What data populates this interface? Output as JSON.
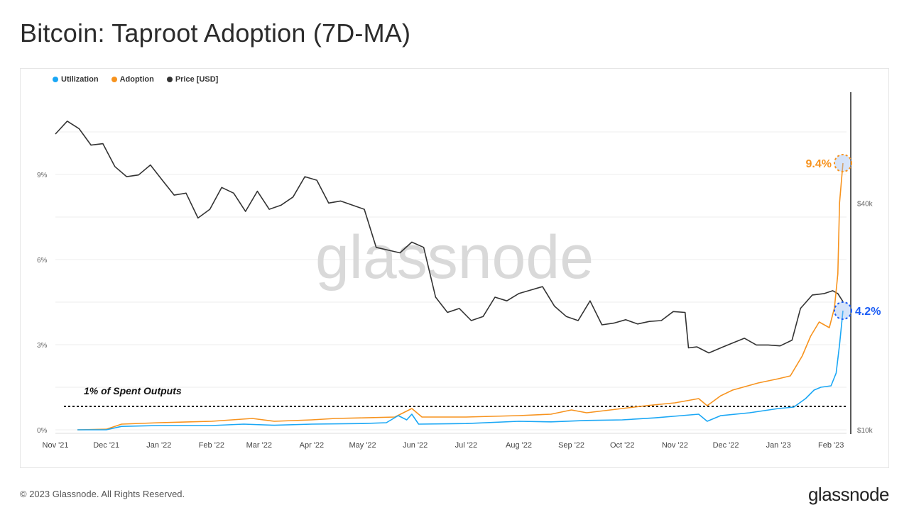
{
  "title": "Bitcoin: Taproot Adoption (7D-MA)",
  "footer": "© 2023 Glassnode. All Rights Reserved.",
  "brand": "glassnode",
  "watermark": "glassnode",
  "colors": {
    "utilization": "#1aa7f5",
    "adoption": "#f7931e",
    "price": "#333333",
    "annotation_blue": "#1a5cf5"
  },
  "chart_data": {
    "type": "line",
    "title": "Bitcoin: Taproot Adoption (7D-MA)",
    "legend": [
      "Utilization",
      "Adoption",
      "Price [USD]"
    ],
    "legend_position": "top-left",
    "x_range": [
      "2021-11-01",
      "2023-02-12"
    ],
    "x_ticks": [
      "Nov '21",
      "Dec '21",
      "Jan '22",
      "Feb '22",
      "Mar '22",
      "Apr '22",
      "May '22",
      "Jun '22",
      "Jul '22",
      "Aug '22",
      "Sep '22",
      "Oct '22",
      "Nov '22",
      "Dec '22",
      "Jan '23",
      "Feb '23"
    ],
    "y_left": {
      "unit": "%",
      "range": [
        0,
        10.5
      ],
      "ticks": [
        "0%",
        "3%",
        "6%",
        "9%"
      ],
      "tick_values": [
        0,
        3,
        6,
        9
      ]
    },
    "y_right": {
      "unit": "USD",
      "scale": "log",
      "ticks": [
        "$10k",
        "$40k"
      ],
      "tick_values": [
        10000,
        40000
      ]
    },
    "reference_line": {
      "value": 1,
      "label": "1% of Spent Outputs"
    },
    "annotations": [
      {
        "series": "Adoption",
        "label": "9.4%",
        "value": 9.4
      },
      {
        "series": "Utilization",
        "label": "4.2%",
        "value": 4.2
      }
    ],
    "series": [
      {
        "name": "Utilization",
        "axis": "left",
        "points": [
          [
            "2021-11-14",
            0
          ],
          [
            "2021-12-01",
            0
          ],
          [
            "2021-12-10",
            0.12
          ],
          [
            "2022-01-01",
            0.15
          ],
          [
            "2022-02-01",
            0.15
          ],
          [
            "2022-02-20",
            0.2
          ],
          [
            "2022-03-10",
            0.16
          ],
          [
            "2022-04-01",
            0.2
          ],
          [
            "2022-05-01",
            0.22
          ],
          [
            "2022-05-15",
            0.25
          ],
          [
            "2022-05-22",
            0.5
          ],
          [
            "2022-05-27",
            0.35
          ],
          [
            "2022-05-30",
            0.55
          ],
          [
            "2022-06-03",
            0.2
          ],
          [
            "2022-07-01",
            0.22
          ],
          [
            "2022-08-01",
            0.3
          ],
          [
            "2022-08-20",
            0.28
          ],
          [
            "2022-09-10",
            0.33
          ],
          [
            "2022-10-01",
            0.35
          ],
          [
            "2022-10-20",
            0.42
          ],
          [
            "2022-11-05",
            0.5
          ],
          [
            "2022-11-15",
            0.55
          ],
          [
            "2022-11-20",
            0.3
          ],
          [
            "2022-11-28",
            0.5
          ],
          [
            "2022-12-15",
            0.6
          ],
          [
            "2023-01-01",
            0.75
          ],
          [
            "2023-01-10",
            0.8
          ],
          [
            "2023-01-17",
            1.1
          ],
          [
            "2023-01-22",
            1.4
          ],
          [
            "2023-01-26",
            1.5
          ],
          [
            "2023-02-01",
            1.55
          ],
          [
            "2023-02-04",
            2.0
          ],
          [
            "2023-02-06",
            3.0
          ],
          [
            "2023-02-08",
            4.2
          ]
        ]
      },
      {
        "name": "Adoption",
        "axis": "left",
        "points": [
          [
            "2021-11-14",
            0
          ],
          [
            "2021-12-01",
            0.02
          ],
          [
            "2021-12-10",
            0.2
          ],
          [
            "2022-01-01",
            0.25
          ],
          [
            "2022-02-01",
            0.3
          ],
          [
            "2022-02-25",
            0.4
          ],
          [
            "2022-03-10",
            0.3
          ],
          [
            "2022-04-01",
            0.35
          ],
          [
            "2022-04-15",
            0.4
          ],
          [
            "2022-05-01",
            0.42
          ],
          [
            "2022-05-20",
            0.45
          ],
          [
            "2022-05-30",
            0.75
          ],
          [
            "2022-06-05",
            0.45
          ],
          [
            "2022-07-01",
            0.45
          ],
          [
            "2022-08-01",
            0.5
          ],
          [
            "2022-08-20",
            0.55
          ],
          [
            "2022-09-01",
            0.7
          ],
          [
            "2022-09-10",
            0.6
          ],
          [
            "2022-10-01",
            0.75
          ],
          [
            "2022-10-15",
            0.85
          ],
          [
            "2022-11-01",
            0.95
          ],
          [
            "2022-11-15",
            1.1
          ],
          [
            "2022-11-20",
            0.85
          ],
          [
            "2022-11-28",
            1.2
          ],
          [
            "2022-12-05",
            1.4
          ],
          [
            "2022-12-20",
            1.65
          ],
          [
            "2023-01-01",
            1.8
          ],
          [
            "2023-01-08",
            1.9
          ],
          [
            "2023-01-15",
            2.6
          ],
          [
            "2023-01-20",
            3.3
          ],
          [
            "2023-01-25",
            3.8
          ],
          [
            "2023-01-31",
            3.6
          ],
          [
            "2023-02-03",
            4.3
          ],
          [
            "2023-02-05",
            5.5
          ],
          [
            "2023-02-06",
            8.0
          ],
          [
            "2023-02-08",
            9.4
          ]
        ]
      },
      {
        "name": "Price [USD]",
        "axis": "right",
        "points": [
          [
            "2021-11-01",
            61000
          ],
          [
            "2021-11-08",
            66000
          ],
          [
            "2021-11-15",
            63000
          ],
          [
            "2021-11-22",
            57000
          ],
          [
            "2021-11-29",
            57500
          ],
          [
            "2021-12-06",
            50000
          ],
          [
            "2021-12-13",
            47000
          ],
          [
            "2021-12-20",
            47500
          ],
          [
            "2021-12-27",
            50500
          ],
          [
            "2022-01-03",
            46000
          ],
          [
            "2022-01-10",
            42000
          ],
          [
            "2022-01-17",
            42500
          ],
          [
            "2022-01-24",
            36500
          ],
          [
            "2022-01-31",
            38500
          ],
          [
            "2022-02-07",
            44000
          ],
          [
            "2022-02-14",
            42500
          ],
          [
            "2022-02-21",
            38000
          ],
          [
            "2022-02-28",
            43000
          ],
          [
            "2022-03-07",
            38500
          ],
          [
            "2022-03-14",
            39500
          ],
          [
            "2022-03-21",
            41500
          ],
          [
            "2022-03-28",
            47000
          ],
          [
            "2022-04-04",
            46000
          ],
          [
            "2022-04-11",
            40000
          ],
          [
            "2022-04-18",
            40500
          ],
          [
            "2022-04-25",
            39500
          ],
          [
            "2022-05-02",
            38500
          ],
          [
            "2022-05-09",
            30500
          ],
          [
            "2022-05-16",
            30000
          ],
          [
            "2022-05-23",
            29500
          ],
          [
            "2022-05-30",
            31500
          ],
          [
            "2022-06-06",
            30500
          ],
          [
            "2022-06-13",
            22500
          ],
          [
            "2022-06-20",
            20500
          ],
          [
            "2022-06-27",
            21000
          ],
          [
            "2022-07-04",
            19500
          ],
          [
            "2022-07-11",
            20000
          ],
          [
            "2022-07-18",
            22500
          ],
          [
            "2022-07-25",
            22000
          ],
          [
            "2022-08-01",
            23000
          ],
          [
            "2022-08-08",
            23500
          ],
          [
            "2022-08-15",
            24000
          ],
          [
            "2022-08-22",
            21300
          ],
          [
            "2022-08-29",
            20000
          ],
          [
            "2022-09-05",
            19500
          ],
          [
            "2022-09-12",
            22000
          ],
          [
            "2022-09-19",
            19000
          ],
          [
            "2022-09-26",
            19200
          ],
          [
            "2022-10-03",
            19600
          ],
          [
            "2022-10-10",
            19100
          ],
          [
            "2022-10-17",
            19400
          ],
          [
            "2022-10-24",
            19500
          ],
          [
            "2022-10-31",
            20600
          ],
          [
            "2022-11-07",
            20500
          ],
          [
            "2022-11-09",
            16500
          ],
          [
            "2022-11-14",
            16600
          ],
          [
            "2022-11-21",
            16000
          ],
          [
            "2022-11-28",
            16500
          ],
          [
            "2022-12-05",
            17000
          ],
          [
            "2022-12-12",
            17500
          ],
          [
            "2022-12-19",
            16800
          ],
          [
            "2022-12-26",
            16800
          ],
          [
            "2023-01-02",
            16700
          ],
          [
            "2023-01-09",
            17300
          ],
          [
            "2023-01-14",
            21000
          ],
          [
            "2023-01-21",
            22800
          ],
          [
            "2023-01-28",
            23000
          ],
          [
            "2023-02-02",
            23400
          ],
          [
            "2023-02-05",
            23000
          ],
          [
            "2023-02-08",
            21900
          ]
        ]
      }
    ]
  }
}
